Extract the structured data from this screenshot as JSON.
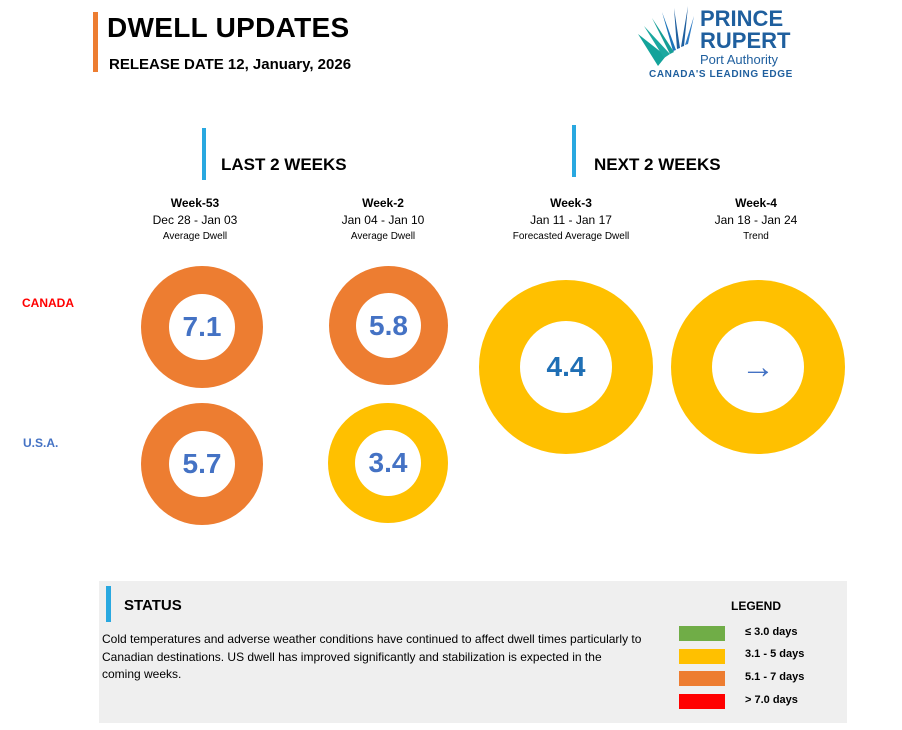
{
  "header": {
    "title": "DWELL UPDATES",
    "release": "RELEASE DATE 12, January, 2026"
  },
  "logo": {
    "line1": "PRINCE",
    "line2": "RUPERT",
    "line3": "Port Authority",
    "tagline": "CANADA'S LEADING EDGE",
    "icon": "port-authority-logo-mark"
  },
  "sections": {
    "last": "LAST 2 WEEKS",
    "next": "NEXT 2 WEEKS"
  },
  "columns": [
    {
      "week": "Week-53",
      "range": "Dec 28 - Jan 03",
      "sub": "Average Dwell"
    },
    {
      "week": "Week-2",
      "range": "Jan 04 - Jan 10",
      "sub": "Average Dwell"
    },
    {
      "week": "Week-3",
      "range": "Jan 11 - Jan 17",
      "sub": "Forecasted Average Dwell"
    },
    {
      "week": "Week-4",
      "range": "Jan 18 - Jan 24",
      "sub": "Trend"
    }
  ],
  "rows": {
    "canada": "CANADA",
    "usa": "U.S.A."
  },
  "values": {
    "canada_w53": "7.1",
    "canada_w2": "5.8",
    "usa_w53": "5.7",
    "usa_w2": "3.4",
    "forecast_w3": "4.4",
    "trend_w4": "→",
    "trend_icon": "right-arrow-icon"
  },
  "colors": {
    "orange": "#ed7d31",
    "yellow": "#ffc000",
    "green": "#70ad47",
    "red": "#ff0000",
    "value_blue": "#4472c4",
    "forecast_blue": "#1f6fb5",
    "canada_label": "#ff0000",
    "usa_label": "#4472c4",
    "accent_blue": "#29a8e0"
  },
  "status": {
    "title": "STATUS",
    "text": " Cold temperatures and adverse weather conditions have continued to affect dwell times particularly to Canadian destinations. US dwell has improved significantly and stabilization is expected in the coming weeks."
  },
  "legend": {
    "title": "LEGEND",
    "items": [
      {
        "label": "≤ 3.0 days",
        "color": "#70ad47"
      },
      {
        "label": "3.1 - 5 days",
        "color": "#ffc000"
      },
      {
        "label": "5.1 - 7 days",
        "color": "#ed7d31"
      },
      {
        "label": "> 7.0 days",
        "color": "#ff0000"
      }
    ]
  }
}
